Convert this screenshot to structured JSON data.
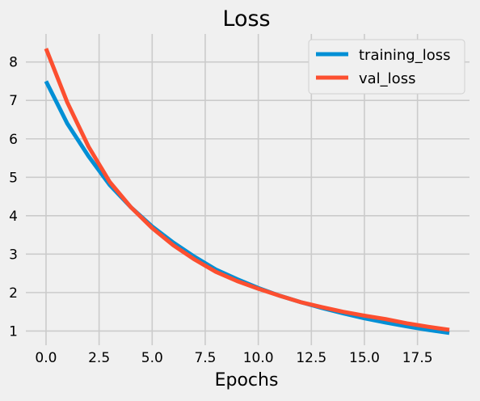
{
  "chart_data": {
    "type": "line",
    "title": "Loss",
    "xlabel": "Epochs",
    "ylabel": "",
    "x": [
      0,
      1,
      2,
      3,
      4,
      5,
      6,
      7,
      8,
      9,
      10,
      11,
      12,
      13,
      14,
      15,
      16,
      17,
      18,
      19
    ],
    "xlim": [
      -0.95,
      19.95
    ],
    "ylim": [
      0.63,
      8.73
    ],
    "x_ticks": [
      0.0,
      2.5,
      5.0,
      7.5,
      10.0,
      12.5,
      15.0,
      17.5
    ],
    "x_tick_labels": [
      "0.0",
      "2.5",
      "5.0",
      "7.5",
      "10.0",
      "12.5",
      "15.0",
      "17.5"
    ],
    "y_ticks": [
      1,
      2,
      3,
      4,
      5,
      6,
      7,
      8
    ],
    "y_tick_labels": [
      "1",
      "2",
      "3",
      "4",
      "5",
      "6",
      "7",
      "8"
    ],
    "grid": true,
    "legend_position": "top-right",
    "series": [
      {
        "name": "training_loss",
        "color": "#008fd5",
        "values": [
          7.5,
          6.4,
          5.55,
          4.8,
          4.22,
          3.72,
          3.3,
          2.93,
          2.6,
          2.35,
          2.12,
          1.92,
          1.75,
          1.6,
          1.46,
          1.33,
          1.22,
          1.12,
          1.03,
          0.95
        ]
      },
      {
        "name": "val_loss",
        "color": "#fc4f30",
        "values": [
          8.35,
          6.95,
          5.8,
          4.88,
          4.22,
          3.68,
          3.23,
          2.86,
          2.54,
          2.3,
          2.1,
          1.92,
          1.75,
          1.62,
          1.5,
          1.4,
          1.31,
          1.2,
          1.11,
          1.03
        ]
      }
    ]
  }
}
